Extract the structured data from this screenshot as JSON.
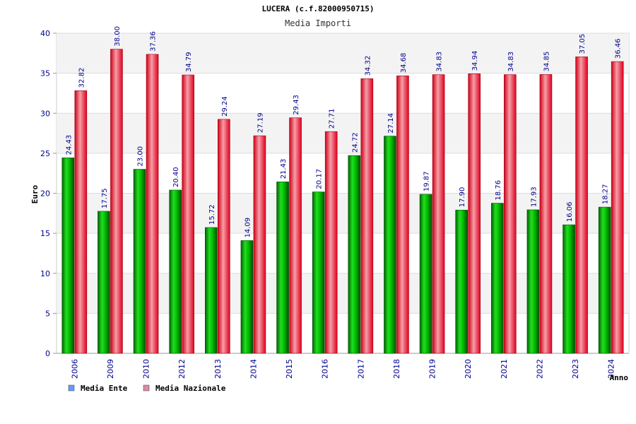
{
  "chart_data": {
    "type": "bar",
    "title": "LUCERA (c.f.82000950715)",
    "subtitle": "Media Importi",
    "xlabel": "Anno",
    "ylabel": "Euro",
    "ylim": [
      0,
      40
    ],
    "yticks": [
      0,
      5,
      10,
      15,
      20,
      25,
      30,
      35,
      40
    ],
    "categories": [
      "2006",
      "2009",
      "2010",
      "2012",
      "2013",
      "2014",
      "2015",
      "2016",
      "2017",
      "2018",
      "2019",
      "2020",
      "2021",
      "2022",
      "2023",
      "2024"
    ],
    "series": [
      {
        "name": "Media Ente",
        "color": "#00b000",
        "legend_color": "#6699ff",
        "values": [
          24.43,
          17.75,
          23.0,
          20.4,
          15.72,
          14.09,
          21.43,
          20.17,
          24.72,
          27.14,
          19.87,
          17.9,
          18.76,
          17.93,
          16.06,
          18.27
        ],
        "labels": [
          "24.43",
          "17.75",
          "23.00",
          "20.40",
          "15.72",
          "14.09",
          "21.43",
          "20.17",
          "24.72",
          "27.14",
          "19.87",
          "17.90",
          "18.76",
          "17.93",
          "16.06",
          "18.27"
        ]
      },
      {
        "name": "Media Nazionale",
        "color": "#e8001c",
        "legend_color": "#dd88aa",
        "values": [
          32.82,
          38.0,
          37.36,
          34.79,
          29.24,
          27.19,
          29.43,
          27.71,
          34.32,
          34.68,
          34.83,
          34.94,
          34.83,
          34.85,
          37.05,
          36.46
        ],
        "labels": [
          "32.82",
          "38.00",
          "37.36",
          "34.79",
          "29.24",
          "27.19",
          "29.43",
          "27.71",
          "34.32",
          "34.68",
          "34.83",
          "34.94",
          "34.83",
          "34.85",
          "37.05",
          "36.46"
        ]
      }
    ],
    "legend_position": "bottom-left",
    "grid": true
  }
}
